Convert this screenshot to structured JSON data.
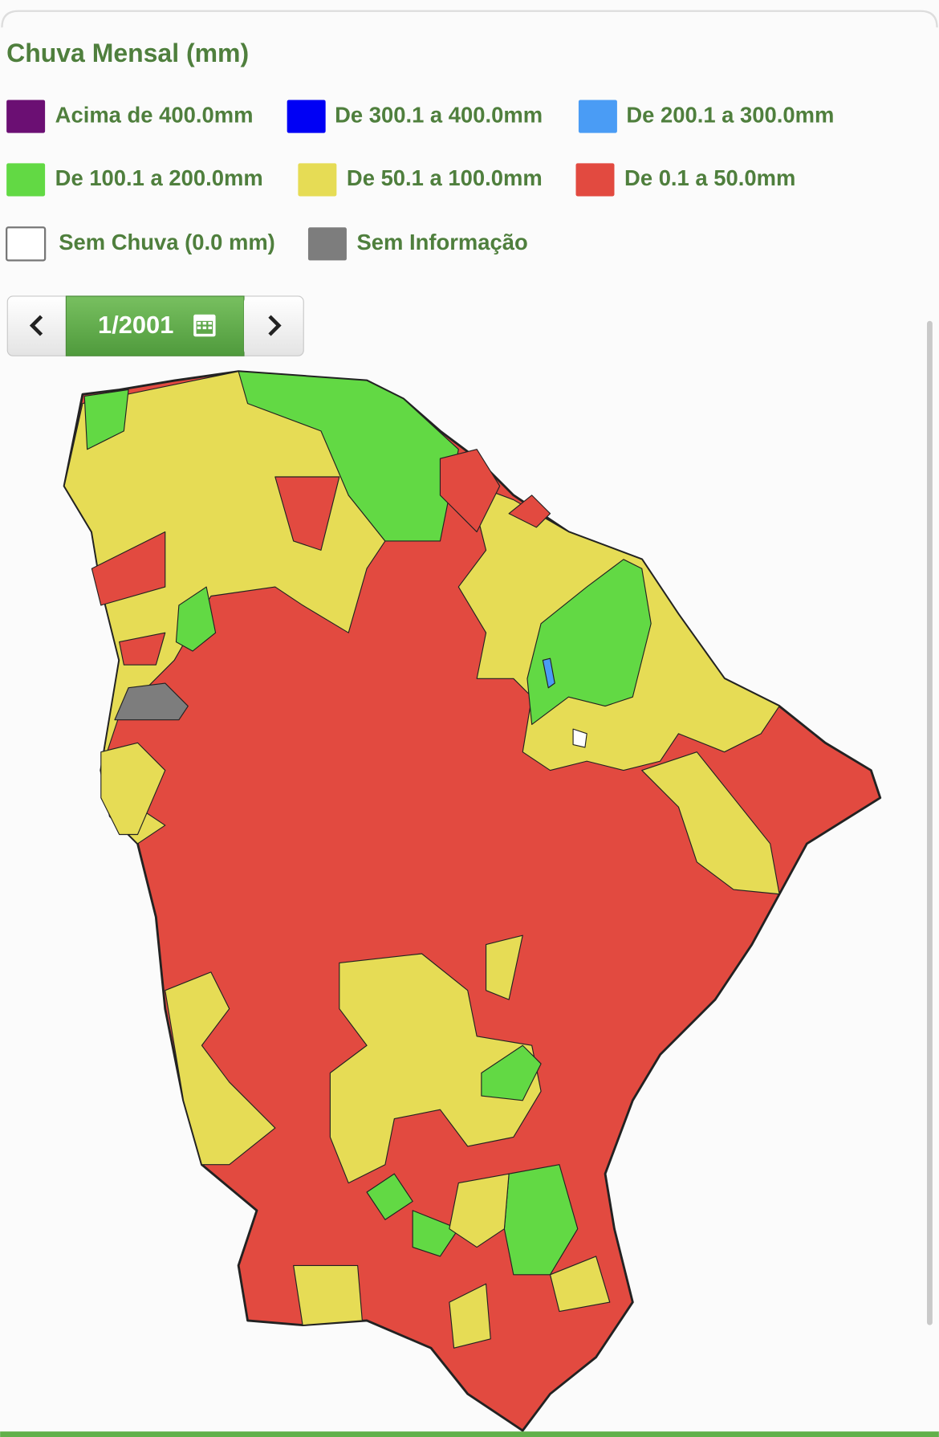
{
  "header": {
    "title": "Chuva Mensal (mm)"
  },
  "legend": [
    {
      "label": "Acima de 400.0mm",
      "color": "#6b0f73"
    },
    {
      "label": "De 300.1 a 400.0mm",
      "color": "#0000f5"
    },
    {
      "label": "De 200.1 a 300.0mm",
      "color": "#4a9cf5"
    },
    {
      "label": "De 100.1 a 200.0mm",
      "color": "#62d944"
    },
    {
      "label": "De 50.1 a 100.0mm",
      "color": "#e6dc55"
    },
    {
      "label": "De 0.1 a 50.0mm",
      "color": "#e24a40"
    },
    {
      "label": "Sem Chuva (0.0 mm)",
      "color": "#ffffff"
    },
    {
      "label": "Sem Informação",
      "color": "#7d7d7d"
    }
  ],
  "navigation": {
    "period": "1/2001"
  }
}
